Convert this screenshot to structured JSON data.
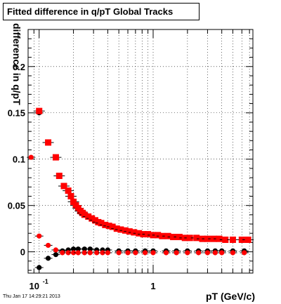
{
  "title": "Fitted difference in q/pT  Global Tracks",
  "footer": "Thu Jan 17 14:29:21 2013",
  "chart_data": {
    "type": "scatter",
    "xlabel": "pT (GeV/c)",
    "ylabel": "difference in q/pT",
    "x_scale": "log",
    "xlim": [
      0.08,
      7.5
    ],
    "ylim": [
      -0.023,
      0.24
    ],
    "grid": true,
    "x_tick_labels": [
      {
        "value": 0.1,
        "base": "10",
        "exp": "-1"
      },
      {
        "value": 1,
        "label": "1"
      }
    ],
    "y_tick_labels": [
      {
        "value": 0,
        "label": "0"
      },
      {
        "value": 0.05,
        "label": "0.05"
      },
      {
        "value": 0.1,
        "label": "0.1"
      },
      {
        "value": 0.15,
        "label": "0.15"
      },
      {
        "value": 0.2,
        "label": "0.2"
      }
    ],
    "series": [
      {
        "marker": "circle",
        "color": "#000000",
        "points": [
          [
            0.1,
            0.15
          ],
          [
            0.1,
            -0.017
          ],
          [
            0.12,
            -0.007
          ],
          [
            0.14,
            -0.003
          ],
          [
            0.16,
            0.001
          ],
          [
            0.18,
            0.002
          ],
          [
            0.2,
            0.003
          ],
          [
            0.22,
            0.003
          ],
          [
            0.25,
            0.003
          ],
          [
            0.28,
            0.003
          ],
          [
            0.32,
            0.002
          ],
          [
            0.36,
            0.002
          ],
          [
            0.4,
            0.002
          ],
          [
            0.5,
            0.001
          ],
          [
            0.6,
            0.001
          ],
          [
            0.7,
            0.001
          ],
          [
            0.85,
            0.001
          ],
          [
            1.0,
            0.001
          ],
          [
            1.3,
            0.001
          ],
          [
            1.6,
            0.001
          ],
          [
            2.0,
            0.001
          ],
          [
            2.5,
            0.001
          ],
          [
            3.0,
            0.001
          ],
          [
            3.5,
            0.001
          ],
          [
            4.0,
            0.001
          ],
          [
            5.0,
            0.001
          ],
          [
            6.3,
            0.001
          ]
        ]
      },
      {
        "marker": "circle",
        "color": "#ff0000",
        "points": [
          [
            0.085,
            0.102
          ],
          [
            0.1,
            0.017
          ],
          [
            0.12,
            0.007
          ],
          [
            0.14,
            0.002
          ],
          [
            0.16,
            -0.001
          ],
          [
            0.18,
            -0.001
          ],
          [
            0.2,
            -0.001
          ],
          [
            0.22,
            -0.001
          ],
          [
            0.25,
            -0.001
          ],
          [
            0.28,
            -0.001
          ],
          [
            0.32,
            -0.001
          ],
          [
            0.36,
            -0.001
          ],
          [
            0.4,
            -0.001
          ],
          [
            0.5,
            -0.001
          ],
          [
            0.6,
            -0.001
          ],
          [
            0.7,
            -0.001
          ],
          [
            0.85,
            -0.001
          ],
          [
            1.0,
            -0.001
          ],
          [
            1.3,
            -0.001
          ],
          [
            1.6,
            -0.001
          ],
          [
            2.0,
            -0.001
          ],
          [
            2.5,
            -0.001
          ],
          [
            3.0,
            -0.001
          ],
          [
            3.5,
            -0.001
          ],
          [
            4.0,
            -0.001
          ],
          [
            5.0,
            -0.001
          ],
          [
            6.3,
            -0.001
          ]
        ]
      },
      {
        "marker": "square",
        "color": "#ff0000",
        "points": [
          [
            0.1,
            0.152
          ],
          [
            0.12,
            0.118
          ],
          [
            0.14,
            0.102
          ],
          [
            0.15,
            0.082
          ],
          [
            0.165,
            0.071
          ],
          [
            0.18,
            0.066
          ],
          [
            0.19,
            0.06
          ],
          [
            0.2,
            0.054
          ],
          [
            0.21,
            0.05
          ],
          [
            0.22,
            0.047
          ],
          [
            0.23,
            0.044
          ],
          [
            0.24,
            0.042
          ],
          [
            0.25,
            0.04
          ],
          [
            0.27,
            0.038
          ],
          [
            0.29,
            0.036
          ],
          [
            0.31,
            0.034
          ],
          [
            0.33,
            0.032
          ],
          [
            0.35,
            0.031
          ],
          [
            0.38,
            0.029
          ],
          [
            0.41,
            0.028
          ],
          [
            0.44,
            0.027
          ],
          [
            0.48,
            0.025
          ],
          [
            0.52,
            0.024
          ],
          [
            0.57,
            0.023
          ],
          [
            0.62,
            0.022
          ],
          [
            0.68,
            0.021
          ],
          [
            0.75,
            0.02
          ],
          [
            0.82,
            0.019
          ],
          [
            0.9,
            0.019
          ],
          [
            1.0,
            0.018
          ],
          [
            1.1,
            0.018
          ],
          [
            1.2,
            0.017
          ],
          [
            1.35,
            0.017
          ],
          [
            1.5,
            0.016
          ],
          [
            1.7,
            0.016
          ],
          [
            1.9,
            0.015
          ],
          [
            2.1,
            0.015
          ],
          [
            2.4,
            0.015
          ],
          [
            2.7,
            0.014
          ],
          [
            3.0,
            0.014
          ],
          [
            3.4,
            0.014
          ],
          [
            3.8,
            0.014
          ],
          [
            4.3,
            0.013
          ],
          [
            5.0,
            0.013
          ],
          [
            6.0,
            0.013
          ],
          [
            6.8,
            0.013
          ]
        ]
      }
    ]
  }
}
